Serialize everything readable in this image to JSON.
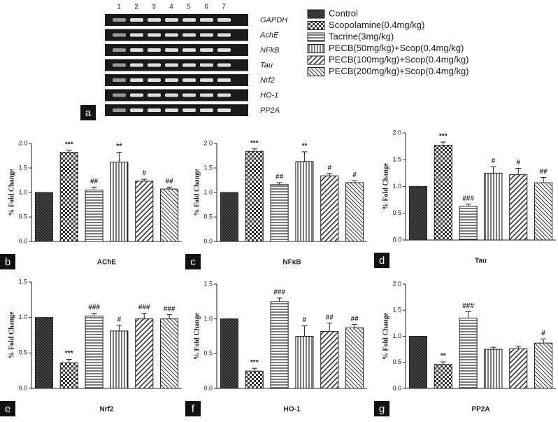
{
  "figure": {
    "panel_label": "a",
    "lanes": [
      1,
      2,
      3,
      4,
      5,
      6,
      7
    ],
    "genes": [
      "GAPDH",
      "AchE",
      "NFkB",
      "Tau",
      "Nrf2",
      "HO-1",
      "PP2A"
    ],
    "legend": [
      "Control",
      "Scopolamine(0.4mg/kg)",
      "Tacrine(3mg/kg)",
      "PECB(50mg/kg)+Scop(0.4mg/kg)",
      "PECB(100mg/kg)+Scop(0.4mg/kg)",
      "PECB(200mg/kg)+Scop(0.4mg/kg)"
    ]
  },
  "chart_data": [
    {
      "type": "bar",
      "panel_label": "b",
      "ylabel": "% Fold Change",
      "xlabel": "AChE",
      "values": [
        1.0,
        1.82,
        1.05,
        1.62,
        1.23,
        1.07
      ],
      "errors": [
        0.0,
        0.04,
        0.06,
        0.2,
        0.04,
        0.04
      ],
      "annotations": [
        null,
        "***",
        "##",
        "**",
        "#",
        "##"
      ],
      "ylim": [
        0,
        2.0
      ],
      "yticks": [
        {
          "value": 0,
          "label": "0.0"
        },
        {
          "value": 0.5,
          "label": "0.5"
        },
        {
          "value": 1.0,
          "label": "1.0"
        },
        {
          "value": 1.5,
          "label": "1.5"
        },
        {
          "value": 2.0,
          "label": "2.0"
        }
      ]
    },
    {
      "type": "bar",
      "panel_label": "c",
      "ylabel": "% Fold Change",
      "xlabel": "NFκB",
      "values": [
        1.0,
        1.84,
        1.16,
        1.63,
        1.34,
        1.2
      ],
      "errors": [
        0.0,
        0.05,
        0.04,
        0.2,
        0.05,
        0.04
      ],
      "annotations": [
        null,
        "***",
        "##",
        "**",
        "#",
        "#"
      ],
      "ylim": [
        0,
        2.0
      ],
      "yticks": [
        {
          "value": 0,
          "label": "0.0"
        },
        {
          "value": 0.5,
          "label": "0.5"
        },
        {
          "value": 1.0,
          "label": "1.0"
        },
        {
          "value": 1.5,
          "label": "1.5"
        },
        {
          "value": 2.0,
          "label": "2.0"
        }
      ]
    },
    {
      "type": "bar",
      "panel_label": "d",
      "ylabel": "% Fold Change",
      "xlabel": "Tau",
      "values": [
        1.0,
        1.77,
        0.63,
        1.25,
        1.22,
        1.07
      ],
      "errors": [
        0.0,
        0.06,
        0.04,
        0.12,
        0.12,
        0.1
      ],
      "annotations": [
        null,
        "***",
        "###",
        "#",
        "#",
        "##"
      ],
      "ylim": [
        0,
        2.0
      ],
      "yticks": [
        {
          "value": 0,
          "label": "0.0"
        },
        {
          "value": 0.5,
          "label": "0.5"
        },
        {
          "value": 1.0,
          "label": "1.0"
        },
        {
          "value": 1.5,
          "label": "1.5"
        },
        {
          "value": 2.0,
          "label": "2.0"
        }
      ]
    },
    {
      "type": "bar",
      "panel_label": "e",
      "ylabel": "% Fold Change",
      "xlabel": "Nrf2",
      "values": [
        1.0,
        0.36,
        1.02,
        0.81,
        0.98,
        0.98
      ],
      "errors": [
        0.0,
        0.05,
        0.04,
        0.08,
        0.08,
        0.06
      ],
      "annotations": [
        null,
        "***",
        "###",
        "#",
        "###",
        "###"
      ],
      "ylim": [
        0,
        1.5
      ],
      "yticks": [
        {
          "value": 0,
          "label": "0.0"
        },
        {
          "value": 0.5,
          "label": "0.5"
        },
        {
          "value": 1.0,
          "label": "1.0"
        },
        {
          "value": 1.5,
          "label": "1.5"
        }
      ]
    },
    {
      "type": "bar",
      "panel_label": "f",
      "ylabel": "% Fold Change",
      "xlabel": "HO-1",
      "values": [
        1.0,
        0.25,
        1.25,
        0.75,
        0.82,
        0.87
      ],
      "errors": [
        0.0,
        0.04,
        0.05,
        0.15,
        0.12,
        0.05
      ],
      "annotations": [
        null,
        "***",
        "###",
        "#",
        "##",
        "##"
      ],
      "ylim": [
        0,
        1.5
      ],
      "yticks": [
        {
          "value": 0,
          "label": "0.0"
        },
        {
          "value": 0.5,
          "label": "0.5"
        },
        {
          "value": 1.0,
          "label": "1.0"
        },
        {
          "value": 1.5,
          "label": "1.5"
        }
      ]
    },
    {
      "type": "bar",
      "panel_label": "g",
      "ylabel": "% Fold Change",
      "xlabel": "PP2A",
      "values": [
        1.0,
        0.46,
        1.35,
        0.75,
        0.76,
        0.87
      ],
      "errors": [
        0.0,
        0.05,
        0.12,
        0.04,
        0.05,
        0.08
      ],
      "annotations": [
        null,
        "**",
        "###",
        null,
        null,
        "#"
      ],
      "ylim": [
        0,
        2.0
      ],
      "yticks": [
        {
          "value": 0,
          "label": "0.0"
        },
        {
          "value": 0.5,
          "label": "0.5"
        },
        {
          "value": 1.0,
          "label": "1.0"
        },
        {
          "value": 1.5,
          "label": "1.5"
        },
        {
          "value": 2.0,
          "label": "2.0"
        }
      ]
    }
  ]
}
